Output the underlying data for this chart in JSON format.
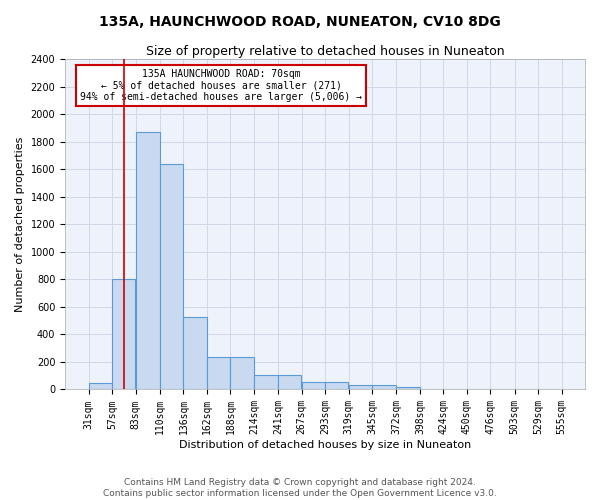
{
  "title1": "135A, HAUNCHWOOD ROAD, NUNEATON, CV10 8DG",
  "title2": "Size of property relative to detached houses in Nuneaton",
  "xlabel": "Distribution of detached houses by size in Nuneaton",
  "ylabel": "Number of detached properties",
  "bin_labels": [
    "31sqm",
    "57sqm",
    "83sqm",
    "110sqm",
    "136sqm",
    "162sqm",
    "188sqm",
    "214sqm",
    "241sqm",
    "267sqm",
    "293sqm",
    "319sqm",
    "345sqm",
    "372sqm",
    "398sqm",
    "424sqm",
    "450sqm",
    "476sqm",
    "503sqm",
    "529sqm",
    "555sqm"
  ],
  "bar_values": [
    50,
    800,
    1870,
    1640,
    530,
    235,
    235,
    105,
    105,
    55,
    55,
    30,
    30,
    20,
    0,
    0,
    0,
    0,
    0,
    0
  ],
  "bin_edges": [
    31,
    57,
    83,
    110,
    136,
    162,
    188,
    214,
    241,
    267,
    293,
    319,
    345,
    372,
    398,
    424,
    450,
    476,
    503,
    529,
    555
  ],
  "bar_color": "#c9d9f0",
  "bar_edge_color": "#5b9bd5",
  "grid_color": "#d0d8e8",
  "background_color": "#eef2fa",
  "fig_background_color": "#ffffff",
  "red_line_x": 70,
  "annotation_text": "135A HAUNCHWOOD ROAD: 70sqm\n← 5% of detached houses are smaller (271)\n94% of semi-detached houses are larger (5,006) →",
  "annotation_box_color": "#ffffff",
  "annotation_box_edge_color": "#cc0000",
  "ylim": [
    0,
    2400
  ],
  "yticks": [
    0,
    200,
    400,
    600,
    800,
    1000,
    1200,
    1400,
    1600,
    1800,
    2000,
    2200,
    2400
  ],
  "footer1": "Contains HM Land Registry data © Crown copyright and database right 2024.",
  "footer2": "Contains public sector information licensed under the Open Government Licence v3.0.",
  "title1_fontsize": 10,
  "title2_fontsize": 9,
  "axis_label_fontsize": 8,
  "tick_fontsize": 7,
  "footer_fontsize": 6.5
}
